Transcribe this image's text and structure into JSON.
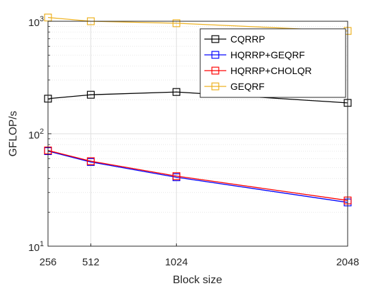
{
  "chart_data": {
    "type": "line",
    "title": "",
    "xlabel": "Block size",
    "ylabel": "GFLOP/s",
    "x": [
      256,
      512,
      1024,
      2048
    ],
    "x_ticks": [
      256,
      512,
      1024,
      2048
    ],
    "x_tick_labels": [
      "256",
      "512",
      "1024",
      "2048"
    ],
    "xlim": [
      256,
      2048
    ],
    "yscale": "log",
    "ylim": [
      10,
      1000
    ],
    "y_ticks": [
      10,
      100,
      1000
    ],
    "y_tick_labels": [
      {
        "base": "10",
        "exp": "1"
      },
      {
        "base": "10",
        "exp": "2"
      },
      {
        "base": "10",
        "exp": "3"
      }
    ],
    "grid": true,
    "minor_grid_y": true,
    "legend_position": "top-right",
    "marker": "square",
    "series": [
      {
        "name": "CQRRP",
        "color": "#000000",
        "values": [
          205,
          222,
          235,
          188
        ]
      },
      {
        "name": "HQRRP+GEQRF",
        "color": "#0000ff",
        "values": [
          70,
          56,
          41,
          24.5
        ]
      },
      {
        "name": "HQRRP+CHOLQR",
        "color": "#ff0000",
        "values": [
          71,
          57,
          42,
          25.5
        ]
      },
      {
        "name": "GEQRF",
        "color": "#edb120",
        "values": [
          1080,
          1000,
          960,
          820
        ]
      }
    ]
  }
}
